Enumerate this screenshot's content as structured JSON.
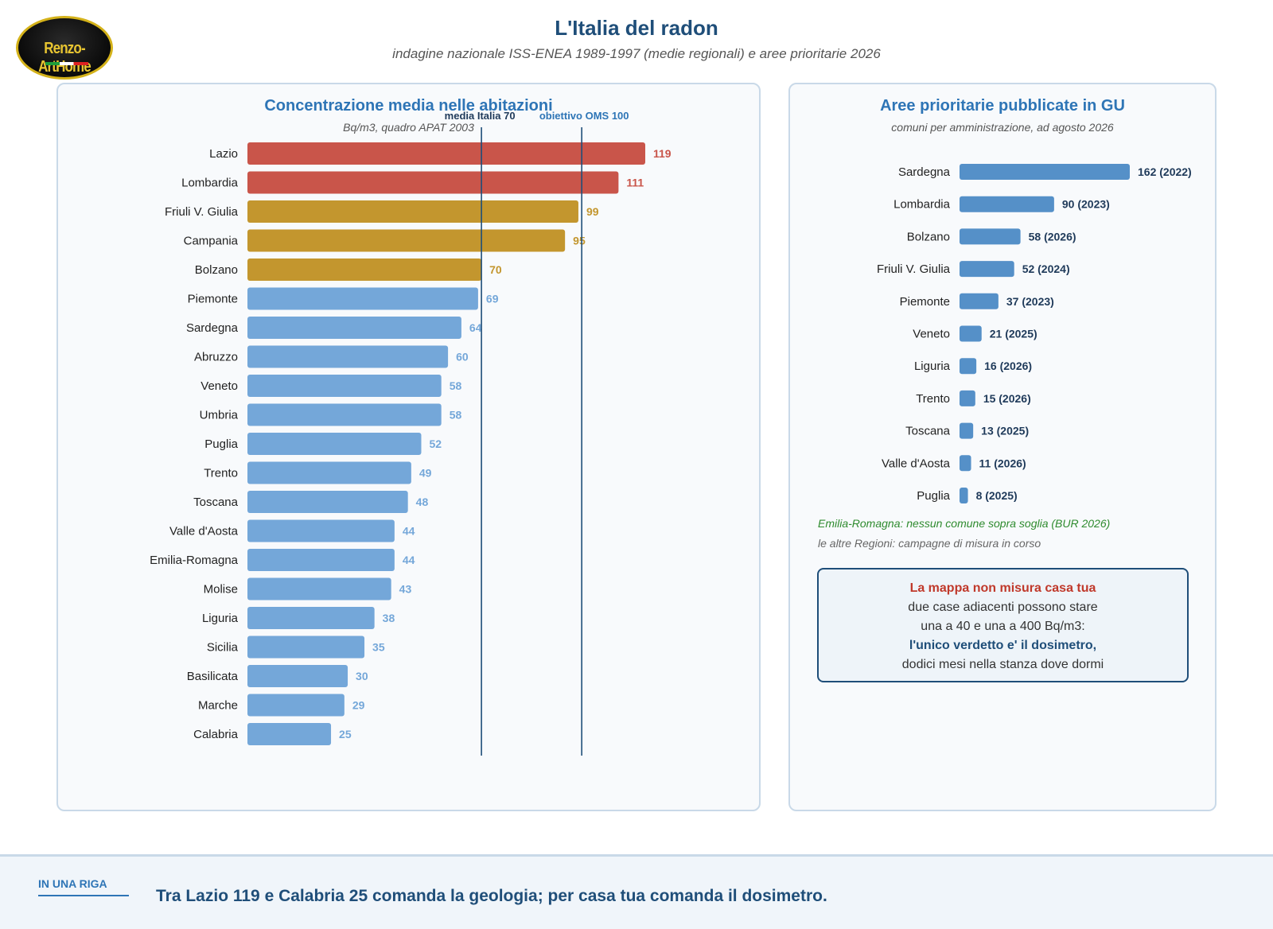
{
  "logo": {
    "text": "Renzo-ArtHome"
  },
  "header": {
    "title": "L'Italia del radon",
    "subtitle": "indagine nazionale ISS-ENEA 1989-1997 (medie regionali) e aree prioritarie 2026"
  },
  "left_panel": {
    "title": "Concentrazione media nelle abitazioni",
    "subtitle": "Bq/m3, quadro APAT 2003"
  },
  "right_panel": {
    "title": "Aree prioritarie pubblicate in GU",
    "subtitle": "comuni per amministrazione, ad agosto 2026",
    "note_green": "Emilia-Romagna: nessun comune sopra soglia (BUR 2026)",
    "note_gray": "le altre Regioni: campagne di misura in corso"
  },
  "callout": {
    "title": "La mappa non misura casa tua",
    "line1": "due case adiacenti possono stare",
    "line2": "una a 40 e una a 400 Bq/m3:",
    "strong": "l'unico verdetto e' il dosimetro,",
    "line3": "dodici mesi nella stanza dove dormi"
  },
  "footer": {
    "label": "IN UNA RIGA",
    "text": "Tra Lazio 119 e Calabria 25 comanda la geologia; per casa tua comanda il dosimetro."
  },
  "colors": {
    "high": "#c9554a",
    "mid": "#c3962e",
    "low": "#74a7d9",
    "priority": "#5590c8",
    "reference_line": "#1f4e79",
    "note_green": "#2e8b2e"
  },
  "chart_data": [
    {
      "type": "bar",
      "orientation": "horizontal",
      "categories": [
        "Lazio",
        "Lombardia",
        "Friuli V. Giulia",
        "Campania",
        "Bolzano",
        "Piemonte",
        "Sardegna",
        "Abruzzo",
        "Veneto",
        "Umbria",
        "Puglia",
        "Trento",
        "Toscana",
        "Valle d'Aosta",
        "Emilia-Romagna",
        "Molise",
        "Liguria",
        "Sicilia",
        "Basilicata",
        "Marche",
        "Calabria"
      ],
      "values": [
        119,
        111,
        99,
        95,
        70,
        69,
        64,
        60,
        58,
        58,
        52,
        49,
        48,
        44,
        44,
        43,
        38,
        35,
        30,
        29,
        25
      ],
      "color_groups": [
        "high",
        "high",
        "mid",
        "mid",
        "mid",
        "low",
        "low",
        "low",
        "low",
        "low",
        "low",
        "low",
        "low",
        "low",
        "low",
        "low",
        "low",
        "low",
        "low",
        "low",
        "low"
      ],
      "reference_lines": [
        {
          "label": "media Italia 70",
          "value": 70
        },
        {
          "label": "obiettivo OMS 100",
          "value": 100
        }
      ],
      "xlim": [
        0,
        119
      ]
    },
    {
      "type": "bar",
      "orientation": "horizontal",
      "categories": [
        "Sardegna",
        "Lombardia",
        "Bolzano",
        "Friuli V. Giulia",
        "Piemonte",
        "Veneto",
        "Liguria",
        "Trento",
        "Toscana",
        "Valle d'Aosta",
        "Puglia"
      ],
      "values": [
        162,
        90,
        58,
        52,
        37,
        21,
        16,
        15,
        13,
        11,
        8
      ],
      "years": [
        "2022",
        "2023",
        "2026",
        "2024",
        "2023",
        "2025",
        "2026",
        "2026",
        "2025",
        "2026",
        "2025"
      ],
      "value_labels": [
        "162 (2022)",
        "90 (2023)",
        "58 (2026)",
        "52 (2024)",
        "37 (2023)",
        "21 (2025)",
        "16 (2026)",
        "15 (2026)",
        "13 (2025)",
        "11 (2026)",
        "8 (2025)"
      ],
      "xlim": [
        0,
        162
      ]
    }
  ]
}
